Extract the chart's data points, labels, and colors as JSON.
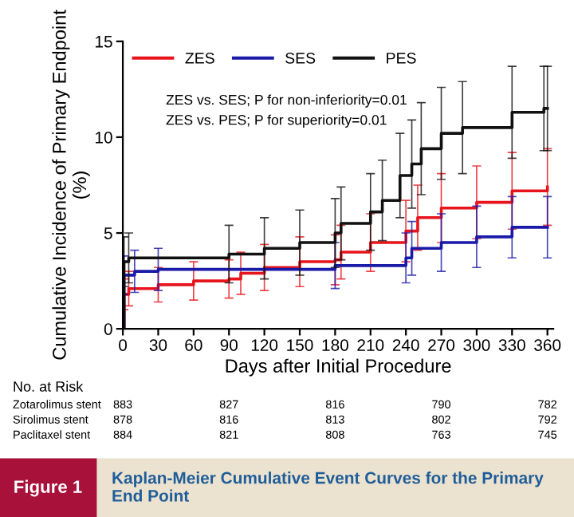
{
  "chart_data": {
    "type": "step",
    "title": "Kaplan-Meier Cumulative Event Curves for the Primary End Point",
    "xlabel": "Days after Initial Procedure",
    "ylabel": "Cumulative Incidence of Primary Endpoint (%)",
    "xlim": [
      0,
      365
    ],
    "xticks": [
      0,
      30,
      60,
      90,
      120,
      150,
      180,
      210,
      240,
      270,
      300,
      330,
      360
    ],
    "ylim": [
      0,
      15
    ],
    "yticks": [
      0,
      5,
      10,
      15
    ],
    "legend": "top left",
    "grid": false,
    "series": [
      {
        "name": "ZES",
        "color": "#e8141c",
        "x": [
          0,
          1,
          5,
          30,
          60,
          90,
          100,
          120,
          150,
          180,
          185,
          210,
          240,
          250,
          270,
          300,
          330,
          360
        ],
        "values": [
          0,
          1.8,
          2.1,
          2.3,
          2.5,
          2.6,
          2.9,
          3.2,
          3.5,
          3.6,
          4.0,
          4.5,
          5.1,
          5.8,
          6.3,
          6.6,
          7.2,
          7.4
        ],
        "errors": [
          null,
          0.8,
          0.9,
          0.9,
          1.0,
          1.0,
          1.1,
          1.2,
          1.3,
          1.3,
          1.4,
          1.5,
          1.6,
          1.7,
          1.8,
          1.9,
          2.0,
          2.0
        ]
      },
      {
        "name": "SES",
        "color": "#1a1aa8",
        "x": [
          0,
          1,
          10,
          30,
          180,
          240,
          245,
          270,
          300,
          330,
          360
        ],
        "values": [
          0,
          2.8,
          3.0,
          3.1,
          3.3,
          3.7,
          4.2,
          4.5,
          4.8,
          5.3,
          5.3
        ],
        "errors": [
          null,
          1.0,
          1.1,
          1.1,
          1.2,
          1.3,
          1.4,
          1.5,
          1.6,
          1.6,
          1.6
        ]
      },
      {
        "name": "PES",
        "color": "#111111",
        "x": [
          0,
          1,
          5,
          90,
          120,
          150,
          180,
          185,
          210,
          220,
          235,
          245,
          253,
          270,
          288,
          330,
          357,
          360
        ],
        "values": [
          0,
          3.5,
          3.7,
          3.9,
          4.2,
          4.5,
          5.0,
          5.5,
          6.1,
          6.7,
          8.0,
          8.6,
          9.4,
          10.2,
          10.5,
          11.3,
          11.5,
          11.5
        ],
        "errors": [
          null,
          1.3,
          1.3,
          1.5,
          1.6,
          1.7,
          1.8,
          1.9,
          2.0,
          2.1,
          2.2,
          2.3,
          2.4,
          2.4,
          2.4,
          2.4,
          2.2,
          2.2
        ]
      }
    ],
    "annotations": [
      "ZES vs. SES; P for non-inferiority=0.01",
      "ZES vs. PES; P for superiority=0.01",
      "No. at Risk",
      "Zotarolimus stent",
      "883",
      "827",
      "816",
      "790",
      "782",
      "Sirolimus stent",
      "878",
      "816",
      "813",
      "802",
      "792",
      "Paclitaxel stent",
      "884",
      "821",
      "808",
      "763",
      "745",
      "Figure 1"
    ]
  }
}
